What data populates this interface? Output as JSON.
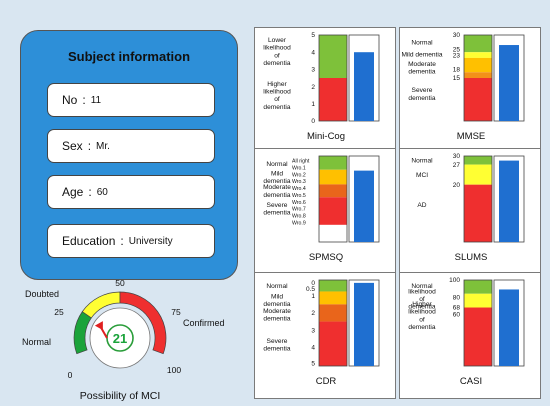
{
  "subject": {
    "title": "Subject information",
    "fields": [
      {
        "key": "No",
        "value": "11"
      },
      {
        "key": "Sex",
        "value": "Mr."
      },
      {
        "key": "Age",
        "value": "60"
      },
      {
        "key": "Education",
        "value": "University"
      }
    ]
  },
  "scales": [
    {
      "id": "minicog",
      "name": "Mini-Cog",
      "max": 5,
      "score": 4,
      "ticks": [
        {
          "v": 5,
          "t": "5"
        },
        {
          "v": 4,
          "t": "4"
        },
        {
          "v": 3,
          "t": "3"
        },
        {
          "v": 2,
          "t": "2"
        },
        {
          "v": 1,
          "t": "1"
        },
        {
          "v": 0,
          "t": "0"
        }
      ],
      "bands": [
        {
          "from": 5,
          "to": 2.5,
          "color": "#7ec13a"
        },
        {
          "from": 2.5,
          "to": 0,
          "color": "#ef2f2f"
        }
      ],
      "labels": [
        {
          "v": 4.05,
          "lines": [
            "Lower",
            "likelihood",
            "of",
            "dementia"
          ]
        },
        {
          "v": 1.5,
          "lines": [
            "Higher",
            "likelihood",
            "of",
            "dementia"
          ]
        }
      ]
    },
    {
      "id": "mmse",
      "name": "MMSE",
      "max": 30,
      "score": 26.5,
      "ticks": [
        {
          "v": 30,
          "t": "30"
        },
        {
          "v": 25,
          "t": "25"
        },
        {
          "v": 23,
          "t": "23"
        },
        {
          "v": 18,
          "t": "18"
        },
        {
          "v": 15,
          "t": "15"
        }
      ],
      "bands": [
        {
          "from": 30,
          "to": 24,
          "color": "#7ec13a"
        },
        {
          "from": 24,
          "to": 22,
          "color": "#ffff33"
        },
        {
          "from": 22,
          "to": 17,
          "color": "#ffc000"
        },
        {
          "from": 17,
          "to": 15,
          "color": "#f39119"
        },
        {
          "from": 15,
          "to": 0,
          "color": "#ef2f2f"
        }
      ],
      "labels": [
        {
          "v": 27.5,
          "lines": [
            "Normal"
          ]
        },
        {
          "v": 23.2,
          "lines": [
            "Mild dementia"
          ]
        },
        {
          "v": 18.6,
          "lines": [
            "Moderate",
            "dementia"
          ]
        },
        {
          "v": 9.5,
          "lines": [
            "Severe",
            "dementia"
          ]
        }
      ]
    },
    {
      "id": "spmsq",
      "name": "SPMSQ",
      "max": 10,
      "score": 8.3,
      "ticks": [
        {
          "v": 9.5,
          "t": "All right"
        },
        {
          "v": 8.7,
          "t": "Wro.1"
        },
        {
          "v": 7.9,
          "t": "Wro.2"
        },
        {
          "v": 7.1,
          "t": "Wro.3"
        },
        {
          "v": 6.3,
          "t": "Wro.4"
        },
        {
          "v": 5.5,
          "t": "Wro.5"
        },
        {
          "v": 4.7,
          "t": "Wro.6"
        },
        {
          "v": 3.9,
          "t": "Wro.7"
        },
        {
          "v": 3.1,
          "t": "Wro.8"
        },
        {
          "v": 2.3,
          "t": "Wro.9"
        }
      ],
      "bands": [
        {
          "from": 10,
          "to": 8.4,
          "color": "#7ec13a"
        },
        {
          "from": 8.4,
          "to": 6.7,
          "color": "#ffc000"
        },
        {
          "from": 6.7,
          "to": 5.2,
          "color": "#e9651b"
        },
        {
          "from": 5.2,
          "to": 2,
          "color": "#ef2f2f"
        }
      ],
      "labels": [
        {
          "v": 9.1,
          "lines": [
            "Normal"
          ]
        },
        {
          "v": 7.55,
          "lines": [
            "Mild",
            "dementia"
          ]
        },
        {
          "v": 5.95,
          "lines": [
            "Moderate",
            "dementia"
          ]
        },
        {
          "v": 3.9,
          "lines": [
            "Severe",
            "dementia"
          ]
        }
      ]
    },
    {
      "id": "slums",
      "name": "SLUMS",
      "max": 30,
      "score": 28.4,
      "ticks": [
        {
          "v": 30,
          "t": "30"
        },
        {
          "v": 27,
          "t": "27"
        },
        {
          "v": 20,
          "t": "20"
        }
      ],
      "bands": [
        {
          "from": 30,
          "to": 27,
          "color": "#7ec13a"
        },
        {
          "from": 27,
          "to": 20,
          "color": "#ffff33"
        },
        {
          "from": 20,
          "to": 0,
          "color": "#ef2f2f"
        }
      ],
      "labels": [
        {
          "v": 28.5,
          "lines": [
            "Normal"
          ]
        },
        {
          "v": 23.5,
          "lines": [
            "MCI"
          ]
        },
        {
          "v": 13,
          "lines": [
            "AD"
          ]
        }
      ]
    },
    {
      "id": "cdr",
      "name": "CDR",
      "max": 6,
      "score": 5.8,
      "ticks": [
        {
          "v": 5.8,
          "t": "0"
        },
        {
          "v": 5.4,
          "t": "0.5"
        },
        {
          "v": 4.9,
          "t": "1"
        },
        {
          "v": 3.7,
          "t": "2"
        },
        {
          "v": 2.5,
          "t": "3"
        },
        {
          "v": 1.3,
          "t": "4"
        },
        {
          "v": 0.2,
          "t": "5"
        }
      ],
      "bands": [
        {
          "from": 6,
          "to": 5.2,
          "color": "#7ec13a"
        },
        {
          "from": 5.2,
          "to": 4.3,
          "color": "#ffc000"
        },
        {
          "from": 4.3,
          "to": 3.1,
          "color": "#e9651b"
        },
        {
          "from": 3.1,
          "to": 0,
          "color": "#ef2f2f"
        }
      ],
      "labels": [
        {
          "v": 5.6,
          "lines": [
            "Normal"
          ]
        },
        {
          "v": 4.6,
          "lines": [
            "Mild",
            "dementia"
          ]
        },
        {
          "v": 3.6,
          "lines": [
            "Moderate",
            "dementia"
          ]
        },
        {
          "v": 1.5,
          "lines": [
            "Severe",
            "dementia"
          ]
        }
      ]
    },
    {
      "id": "casi",
      "name": "CASI",
      "max": 100,
      "score": 89,
      "ticks": [
        {
          "v": 100,
          "t": "100"
        },
        {
          "v": 80,
          "t": "80"
        },
        {
          "v": 68,
          "t": "68"
        },
        {
          "v": 60,
          "t": "60"
        }
      ],
      "bands": [
        {
          "from": 100,
          "to": 84,
          "color": "#7ec13a"
        },
        {
          "from": 84,
          "to": 68,
          "color": "#ffff33"
        },
        {
          "from": 68,
          "to": 0,
          "color": "#ef2f2f"
        }
      ],
      "labels": [
        {
          "v": 93,
          "lines": [
            "Normal"
          ]
        },
        {
          "v": 78,
          "lines": [
            "likelihood",
            "of",
            "dementia"
          ]
        },
        {
          "v": 59,
          "lines": [
            "Higher",
            "likelihood",
            "of",
            "dementia"
          ]
        }
      ]
    }
  ],
  "mci": {
    "value": "21",
    "score": 21,
    "caption": "Possibility of MCI",
    "ticks": [
      "0",
      "25",
      "50",
      "75",
      "100"
    ],
    "labels": {
      "normal": "Normal",
      "doubted": "Doubted",
      "confirmed": "Confirmed"
    },
    "colors": {
      "normal": "#1aa33a",
      "doubted": "#ffff33",
      "confirmed": "#ef2f2f",
      "pointer": "#e02020"
    }
  }
}
